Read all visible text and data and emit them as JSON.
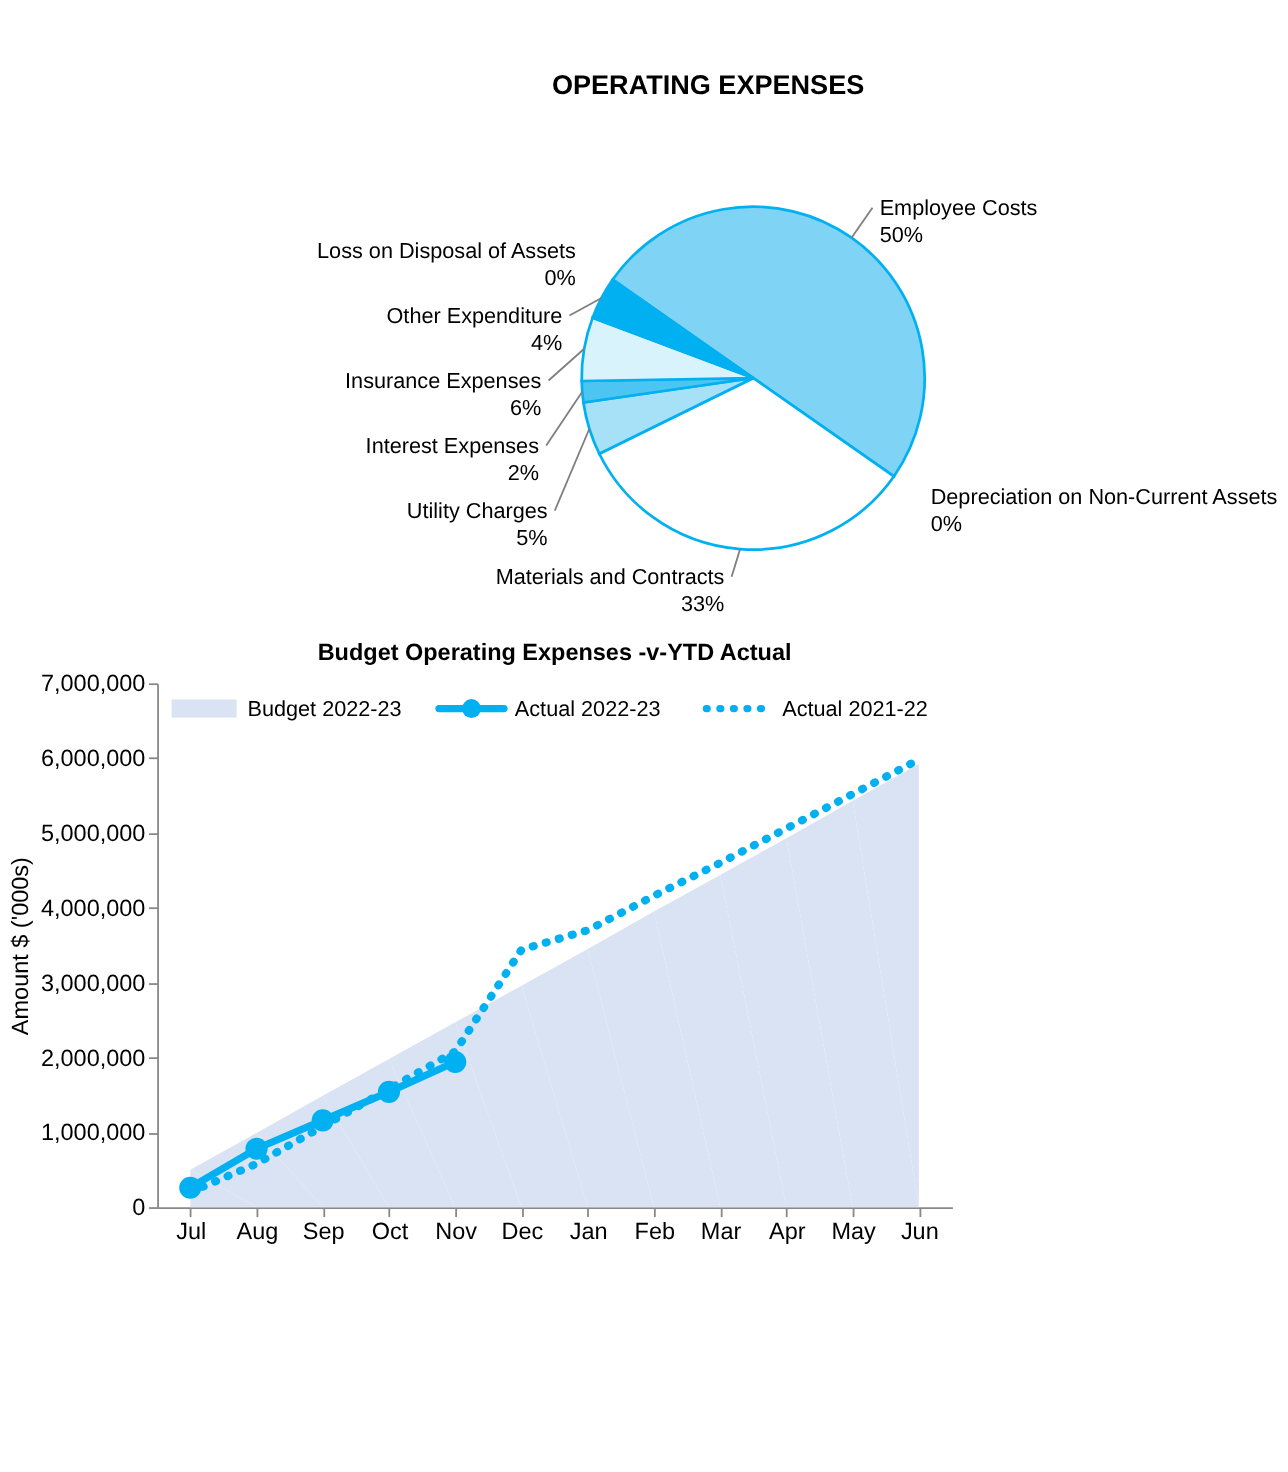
{
  "chart_data": [
    {
      "type": "pie",
      "title": "OPERATING EXPENSES",
      "categories": [
        "Employee Costs",
        "Depreciation on Non-Current Assets",
        "Materials and Contracts",
        "Utility Charges",
        "Interest Expenses",
        "Insurance Expenses",
        "Other Expenditure",
        "Loss on Disposal of Assets"
      ],
      "values": [
        50,
        0,
        33,
        5,
        2,
        6,
        4,
        0
      ],
      "value_labels": [
        "50%",
        "0%",
        "33%",
        "5%",
        "2%",
        "6%",
        "4%",
        "0%"
      ],
      "colors": [
        "#7fd3f5",
        "#00b0f0",
        "#ffffff",
        "#a6e1f8",
        "#4cc5f3",
        "#d9f3fc",
        "#00b0f0",
        "#00b0f0"
      ]
    },
    {
      "type": "area",
      "title": "Budget Operating Expenses -v-YTD Actual",
      "ylabel": "Amount $ ('000s)",
      "categories": [
        "Jul",
        "Aug",
        "Sep",
        "Oct",
        "Nov",
        "Dec",
        "Jan",
        "Feb",
        "Mar",
        "Apr",
        "May",
        "Jun"
      ],
      "series": [
        {
          "name": "Budget 2022-23",
          "type": "area",
          "color": "#dae3f3",
          "values": [
            500000,
            990000,
            1490000,
            1980000,
            2470000,
            2960000,
            3450000,
            3950000,
            4440000,
            4930000,
            5430000,
            5920000
          ]
        },
        {
          "name": "Actual 2022-23",
          "type": "line",
          "color": "#00b0f0",
          "marker": "circle",
          "line_style": "solid",
          "values": [
            260000,
            780000,
            1160000,
            1540000,
            1940000,
            null,
            null,
            null,
            null,
            null,
            null,
            null
          ]
        },
        {
          "name": "Actual 2021-22",
          "type": "line",
          "color": "#00b0f0",
          "marker": "none",
          "line_style": "dotted",
          "values": [
            200000,
            580000,
            1080000,
            1580000,
            2080000,
            3440000,
            3700000,
            4160000,
            4600000,
            5060000,
            5520000,
            5980000
          ]
        }
      ],
      "ylim": [
        0,
        7000000
      ],
      "yticks": [
        0,
        {
          "value": 1000000,
          "label": "1,000,000"
        },
        {
          "value": 2000000,
          "label": "2,000,000"
        },
        {
          "value": 3000000,
          "label": "3,000,000"
        },
        {
          "value": 4000000,
          "label": "4,000,000"
        },
        {
          "value": 5000000,
          "label": "5,000,000"
        },
        {
          "value": 6000000,
          "label": "6,000,000"
        },
        {
          "value": 7000000,
          "label": "7,000,000"
        }
      ],
      "legend": "top",
      "grid": false
    }
  ]
}
